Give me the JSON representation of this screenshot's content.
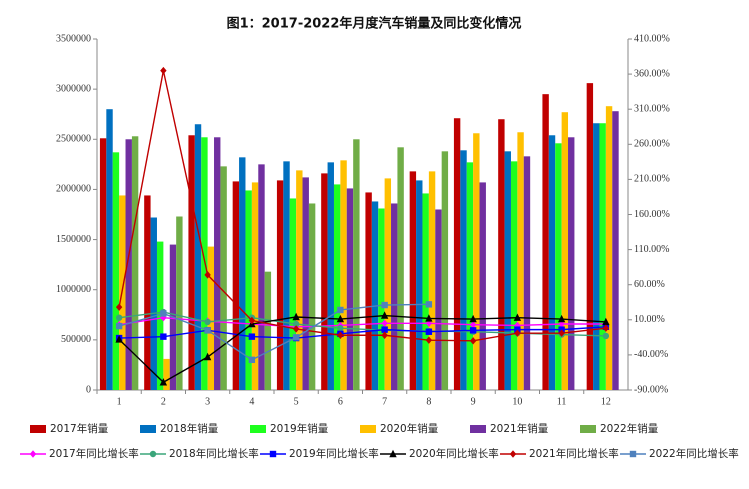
{
  "chart_data": {
    "type": "bar-line",
    "title": "图1：2017-2022年月度汽车销量及同比变化情况",
    "categories": [
      "1",
      "2",
      "3",
      "4",
      "5",
      "6",
      "7",
      "8",
      "9",
      "10",
      "11",
      "12"
    ],
    "ylim": [
      0,
      3500000
    ],
    "yticks": [
      0,
      500000,
      1000000,
      1500000,
      2000000,
      2500000,
      3000000,
      3500000
    ],
    "y2lim": [
      -90,
      410
    ],
    "y2ticks": [
      {
        "value": -90,
        "label": "-90.00%"
      },
      {
        "value": -40,
        "label": "-40.00%"
      },
      {
        "value": 10,
        "label": "10.00%"
      },
      {
        "value": 60,
        "label": "60.00%"
      },
      {
        "value": 110,
        "label": "110.00%"
      },
      {
        "value": 160,
        "label": "160.00%"
      },
      {
        "value": 210,
        "label": "210.00%"
      },
      {
        "value": 260,
        "label": "260.00%"
      },
      {
        "value": 310,
        "label": "310.00%"
      },
      {
        "value": 360,
        "label": "360.00%"
      },
      {
        "value": 410,
        "label": "410.00%"
      }
    ],
    "series": [
      {
        "name": "2017年销量",
        "type": "bar",
        "color": "#c00000",
        "values": [
          2510000,
          1940000,
          2540000,
          2080000,
          2090000,
          2160000,
          1970000,
          2180000,
          2710000,
          2700000,
          2950000,
          3060000
        ]
      },
      {
        "name": "2018年销量",
        "type": "bar",
        "color": "#0070c0",
        "values": [
          2800000,
          1720000,
          2650000,
          2320000,
          2280000,
          2270000,
          1880000,
          2090000,
          2390000,
          2380000,
          2540000,
          2660000
        ]
      },
      {
        "name": "2019年销量",
        "type": "bar",
        "color": "#1eff1e",
        "values": [
          2370000,
          1480000,
          2520000,
          1990000,
          1910000,
          2050000,
          1810000,
          1960000,
          2270000,
          2280000,
          2460000,
          2660000
        ]
      },
      {
        "name": "2020年销量",
        "type": "bar",
        "color": "#ffc000",
        "values": [
          1940000,
          310000,
          1430000,
          2070000,
          2190000,
          2290000,
          2110000,
          2180000,
          2560000,
          2570000,
          2770000,
          2830000
        ]
      },
      {
        "name": "2021年销量",
        "type": "bar",
        "color": "#7030a0",
        "values": [
          2500000,
          1450000,
          2520000,
          2250000,
          2120000,
          2010000,
          1860000,
          1800000,
          2070000,
          2330000,
          2520000,
          2780000
        ]
      },
      {
        "name": "2022年销量",
        "type": "bar",
        "color": "#70ad47",
        "values": [
          2530000,
          1730000,
          2230000,
          1180000,
          1860000,
          2500000,
          2420000,
          2380000,
          null,
          null,
          null,
          null
        ]
      },
      {
        "name": "2017年同比增长率",
        "type": "line",
        "axis": "y2",
        "color": "#ff00ff",
        "marker": "diamond",
        "values": [
          3,
          13,
          8,
          4,
          0,
          2,
          5,
          5,
          3,
          2,
          4,
          4
        ]
      },
      {
        "name": "2018年同比增长率",
        "type": "line",
        "axis": "y2",
        "color": "#3aa57a",
        "marker": "circle",
        "values": [
          13,
          21,
          7,
          13,
          4,
          -2,
          -5,
          -6,
          -7,
          -9,
          -11,
          -13
        ]
      },
      {
        "name": "2019年同比增长率",
        "type": "line",
        "axis": "y2",
        "color": "#0000ff",
        "marker": "square",
        "values": [
          -16,
          -14,
          -5,
          -14,
          -16,
          -10,
          -4,
          -7,
          -5,
          -4,
          -4,
          0
        ]
      },
      {
        "name": "2020年同比增长率",
        "type": "line",
        "axis": "y2",
        "color": "#000000",
        "marker": "triangle",
        "values": [
          -18,
          -79,
          -43,
          4,
          14,
          11,
          16,
          12,
          11,
          13,
          11,
          7
        ]
      },
      {
        "name": "2021年同比增长率",
        "type": "line",
        "axis": "y2",
        "color": "#c00000",
        "marker": "diamond",
        "values": [
          28,
          365,
          74,
          9,
          -3,
          -12,
          -12,
          -19,
          -20,
          -9,
          -9,
          -2
        ]
      },
      {
        "name": "2022年同比增长率",
        "type": "line",
        "axis": "y2",
        "color": "#4f81bd",
        "marker": "square",
        "values": [
          1,
          19,
          -5,
          -47,
          -15,
          24,
          31,
          32,
          null,
          null,
          null,
          null
        ]
      }
    ]
  }
}
